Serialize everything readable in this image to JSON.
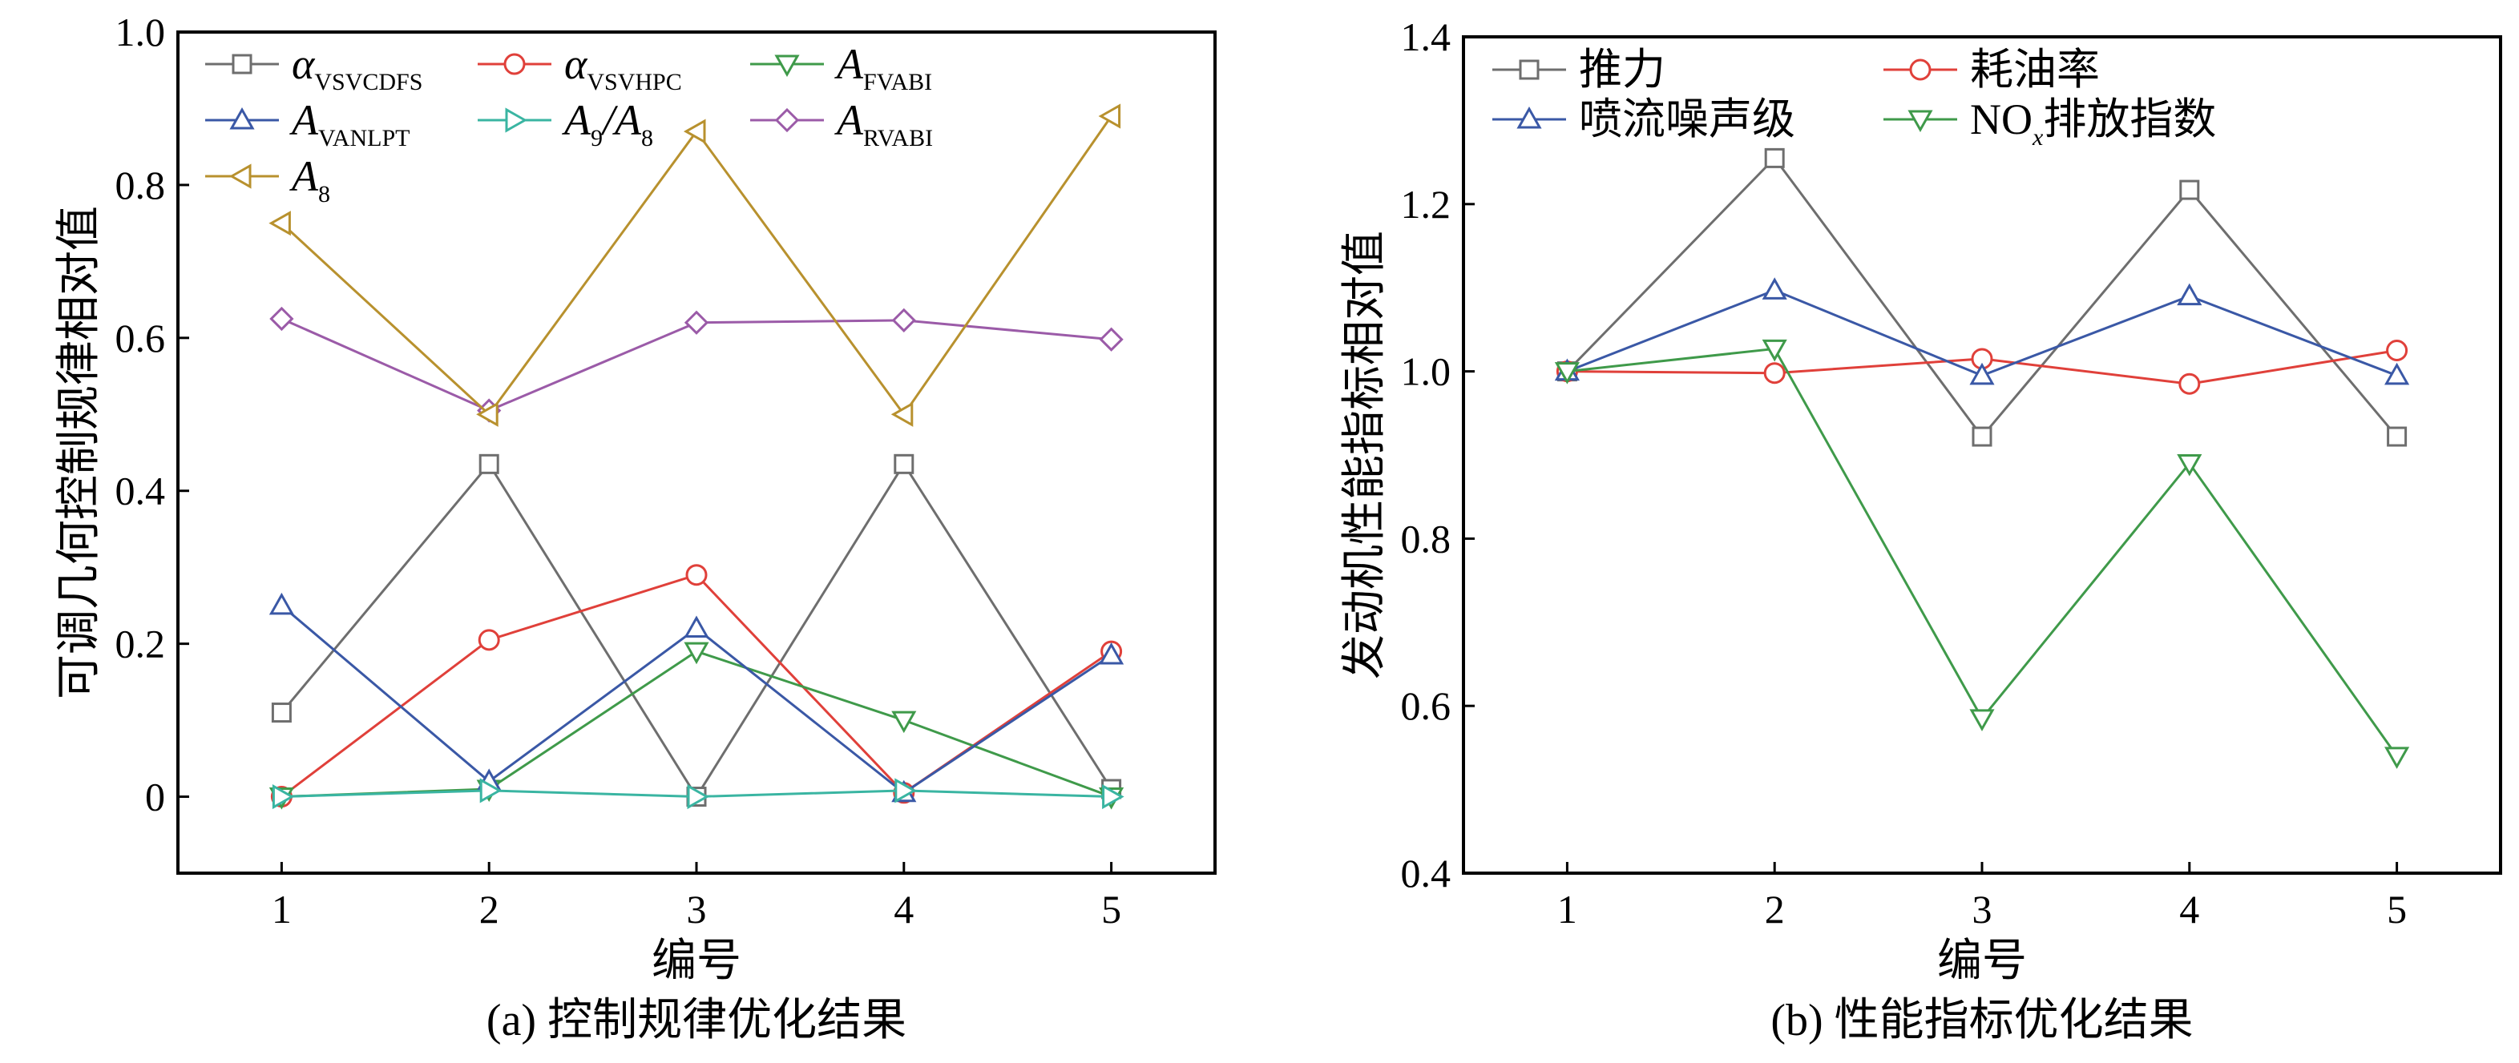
{
  "charts": [
    {
      "id": "a",
      "caption": "(a) 控制规律优化结果",
      "chart_data": {
        "type": "line",
        "xlabel": "编号",
        "ylabel": "可调几何控制规律相对值",
        "x": [
          1,
          2,
          3,
          4,
          5
        ],
        "xlim": [
          0.5,
          5.5
        ],
        "ylim": [
          -0.1,
          1.0
        ],
        "xticks": [
          "1",
          "2",
          "3",
          "4",
          "5"
        ],
        "yticks": [
          {
            "value": 0,
            "label": "0"
          },
          {
            "value": 0.2,
            "label": "0.2"
          },
          {
            "value": 0.4,
            "label": "0.4"
          },
          {
            "value": 0.6,
            "label": "0.6"
          },
          {
            "value": 0.8,
            "label": "0.8"
          },
          {
            "value": 1.0,
            "label": "1.0"
          }
        ],
        "legend_position": "top",
        "series": [
          {
            "name": "α_VSVCDFS",
            "base": "α",
            "sub": "VSVCDFS",
            "marker": "square",
            "color": "#6e6e6e",
            "values": [
              0.11,
              0.435,
              0.0,
              0.435,
              0.01
            ]
          },
          {
            "name": "α_VSVHPC",
            "base": "α",
            "sub": "VSVHPC",
            "marker": "circle",
            "color": "#e0403a",
            "values": [
              0.0,
              0.205,
              0.29,
              0.005,
              0.19
            ]
          },
          {
            "name": "A_FVABI",
            "base": "A",
            "sub": "FVABI",
            "marker": "triangle-down",
            "color": "#3f9a4a",
            "values": [
              0.0,
              0.01,
              0.19,
              0.1,
              0.0
            ]
          },
          {
            "name": "A_VANLPT",
            "base": "A",
            "sub": "VANLPT",
            "marker": "triangle-up",
            "color": "#3a58a6",
            "values": [
              0.25,
              0.02,
              0.22,
              0.005,
              0.185
            ]
          },
          {
            "name": "A_9/A_8",
            "base": "A",
            "sub": "9",
            "base2": "/A",
            "sub2": "8",
            "marker": "triangle-right",
            "color": "#3ab5a2",
            "values": [
              0.0,
              0.008,
              0.0,
              0.008,
              0.0
            ]
          },
          {
            "name": "A_RVABI",
            "base": "A",
            "sub": "RVABI",
            "marker": "diamond",
            "color": "#9b5ba8",
            "values": [
              0.625,
              0.505,
              0.62,
              0.623,
              0.598
            ]
          },
          {
            "name": "A_8",
            "base": "A",
            "sub": "8",
            "marker": "triangle-left",
            "color": "#b8912e",
            "values": [
              0.75,
              0.5,
              0.87,
              0.5,
              0.89
            ]
          }
        ]
      }
    },
    {
      "id": "b",
      "caption": "(b) 性能指标优化结果",
      "chart_data": {
        "type": "line",
        "xlabel": "编号",
        "ylabel": "发动机性能指标相对值",
        "x": [
          1,
          2,
          3,
          4,
          5
        ],
        "xlim": [
          0.5,
          5.5
        ],
        "ylim": [
          0.4,
          1.4
        ],
        "xticks": [
          "1",
          "2",
          "3",
          "4",
          "5"
        ],
        "yticks": [
          {
            "value": 0.4,
            "label": "0.4"
          },
          {
            "value": 0.6,
            "label": "0.6"
          },
          {
            "value": 0.8,
            "label": "0.8"
          },
          {
            "value": 1.0,
            "label": "1.0"
          },
          {
            "value": 1.2,
            "label": "1.2"
          },
          {
            "value": 1.4,
            "label": "1.4"
          }
        ],
        "legend_position": "top",
        "series": [
          {
            "name": "推力",
            "base": "推力",
            "marker": "square",
            "color": "#6e6e6e",
            "values": [
              1.0,
              1.255,
              0.922,
              1.217,
              0.922
            ]
          },
          {
            "name": "耗油率",
            "base": "耗油率",
            "marker": "circle",
            "color": "#e0403a",
            "values": [
              1.0,
              0.998,
              1.015,
              0.985,
              1.025
            ]
          },
          {
            "name": "喷流噪声级",
            "base": "喷流噪声级",
            "marker": "triangle-up",
            "color": "#3a58a6",
            "values": [
              1.0,
              1.097,
              0.995,
              1.09,
              0.995
            ]
          },
          {
            "name": "NOx排放指数",
            "base": "NO",
            "sub": "x",
            "italic_sub": true,
            "tail": "排放指数",
            "marker": "triangle-down",
            "color": "#3f9a4a",
            "values": [
              1.0,
              1.027,
              0.585,
              0.89,
              0.54
            ]
          }
        ]
      }
    }
  ]
}
